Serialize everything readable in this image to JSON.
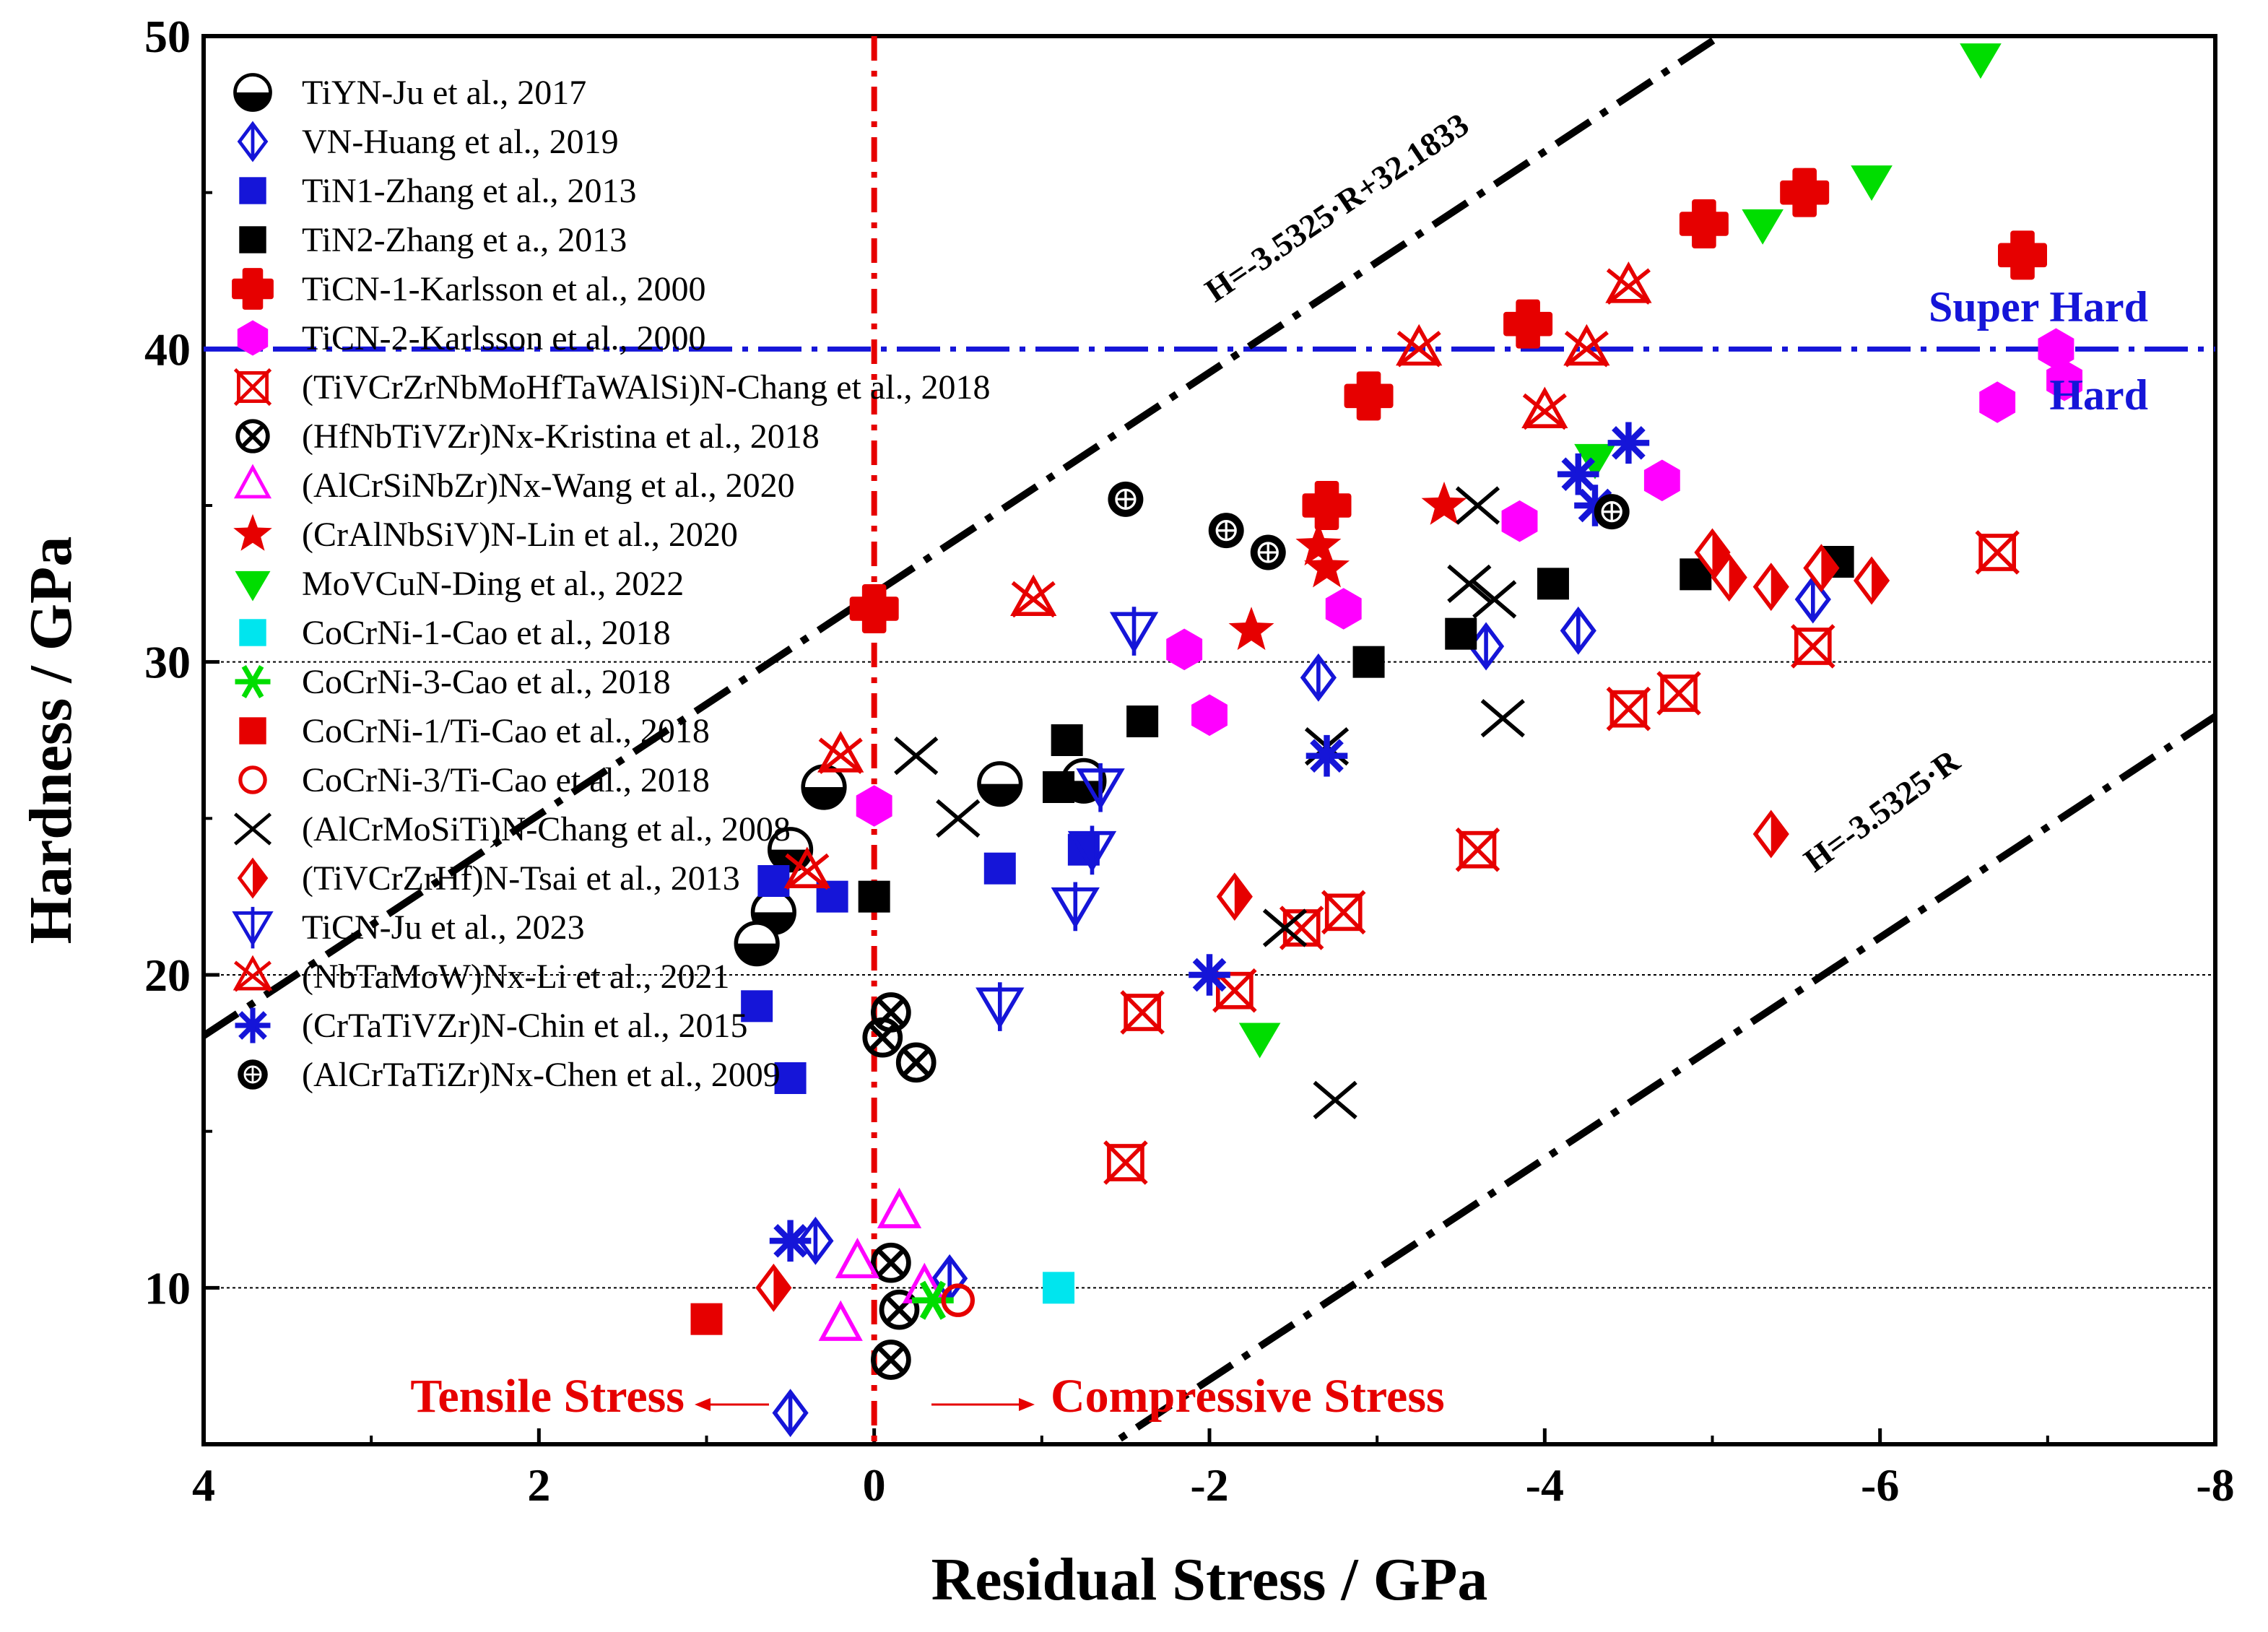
{
  "chart_data": {
    "type": "scatter",
    "xlabel": "Residual Stress / GPa",
    "ylabel": "Hardness / GPa",
    "xlim": [
      4,
      -8
    ],
    "ylim": [
      5,
      50
    ],
    "xticks": [
      4,
      2,
      0,
      -2,
      -4,
      -6,
      -8
    ],
    "xtick_labels": [
      "4",
      "2",
      "0",
      "-2",
      "-4",
      "-6",
      "-8"
    ],
    "yticks": [
      10,
      20,
      30,
      40,
      50
    ],
    "ytick_labels": [
      "10",
      "20",
      "30",
      "40",
      "50"
    ],
    "gridlines_y": [
      10,
      20,
      30
    ],
    "superhard_threshold": 40,
    "zero_stress_line": 0,
    "annotations": {
      "super_hard": "Super Hard",
      "hard": "Hard",
      "tensile": "Tensile Stress",
      "compressive": "Compressive Stress",
      "upper_line": "H=-3.5325·R+32.1833",
      "lower_line": "H=-3.5325·R"
    },
    "fit_lines": [
      {
        "name": "upper",
        "slope": -3.5325,
        "intercept": 32.1833,
        "x_range": [
          4,
          -5.2
        ]
      },
      {
        "name": "lower",
        "slope": -3.5325,
        "intercept": 0,
        "x_range": [
          -0.1,
          -8
        ]
      }
    ],
    "series": [
      {
        "name": "TiYN-Ju et al., 2017",
        "marker": "halfcircle",
        "color": "#000000",
        "points": [
          [
            0.3,
            26
          ],
          [
            0.5,
            24
          ],
          [
            0.6,
            22
          ],
          [
            0.7,
            21
          ],
          [
            -1.25,
            26.2
          ],
          [
            -0.75,
            26.1
          ]
        ]
      },
      {
        "name": "VN-Huang et al., 2019",
        "marker": "halfdiamond",
        "color": "#1515d8",
        "points": [
          [
            0.5,
            6
          ],
          [
            0.35,
            11.5
          ],
          [
            -0.45,
            10.3
          ],
          [
            -2.65,
            29.5
          ],
          [
            -3.65,
            30.5
          ],
          [
            -4.2,
            31
          ],
          [
            -5.6,
            32
          ]
        ]
      },
      {
        "name": "TiN1-Zhang et al., 2013",
        "marker": "square",
        "color": "#1515d8",
        "points": [
          [
            0.7,
            19
          ],
          [
            0.6,
            23
          ],
          [
            0.25,
            22.5
          ],
          [
            0.5,
            16.7
          ],
          [
            -0.75,
            23.4
          ],
          [
            -1.25,
            24
          ]
        ]
      },
      {
        "name": "TiN2-Zhang et a., 2013",
        "marker": "square",
        "color": "#000000",
        "points": [
          [
            0,
            22.5
          ],
          [
            -1.1,
            26
          ],
          [
            -1.15,
            27.5
          ],
          [
            -1.6,
            28.1
          ],
          [
            -2.95,
            30
          ],
          [
            -3.5,
            30.9
          ],
          [
            -4.05,
            32.5
          ],
          [
            -4.9,
            32.8
          ],
          [
            -5.75,
            33.2
          ]
        ]
      },
      {
        "name": "TiCN-1-Karlsson et al., 2000",
        "marker": "cross",
        "color": "#e60000",
        "points": [
          [
            0,
            31.7
          ],
          [
            -2.7,
            35
          ],
          [
            -2.95,
            38.5
          ],
          [
            -3.9,
            40.8
          ],
          [
            -4.95,
            44
          ],
          [
            -5.55,
            45
          ],
          [
            -6.85,
            43
          ]
        ]
      },
      {
        "name": "TiCN-2-Karlsson et al., 2000",
        "marker": "hexagon",
        "color": "#ff00ff",
        "points": [
          [
            0,
            25.4
          ],
          [
            -1.85,
            30.4
          ],
          [
            -2,
            28.3
          ],
          [
            -2.8,
            31.7
          ],
          [
            -3.85,
            34.5
          ],
          [
            -4.7,
            35.8
          ],
          [
            -6.7,
            38.3
          ],
          [
            -7.05,
            40
          ],
          [
            -7.1,
            39
          ]
        ]
      },
      {
        "name": "(TiVCrZrNbMoHfTaWAlSi)N-Chang et al., 2018",
        "marker": "xbox",
        "color": "#e60000",
        "points": [
          [
            -1.5,
            14
          ],
          [
            -1.6,
            18.8
          ],
          [
            -2.15,
            19.5
          ],
          [
            -2.55,
            21.5
          ],
          [
            -2.8,
            22
          ],
          [
            -3.6,
            24
          ],
          [
            -4.5,
            28.5
          ],
          [
            -4.8,
            29
          ],
          [
            -5.6,
            30.5
          ],
          [
            -6.7,
            33.5
          ]
        ]
      },
      {
        "name": "(HfNbTiVZr)Nx-Kristina et al., 2018",
        "marker": "xcircle",
        "color": "#000000",
        "points": [
          [
            -0.1,
            18.8
          ],
          [
            -0.05,
            18
          ],
          [
            -0.25,
            17.2
          ],
          [
            -0.1,
            10.8
          ],
          [
            -0.15,
            9.3
          ],
          [
            -0.1,
            7.7
          ]
        ]
      },
      {
        "name": "(AlCrSiNbZr)Nx-Wang et al., 2020",
        "marker": "triangle",
        "color": "#ff00ff",
        "points": [
          [
            -0.15,
            12.4
          ],
          [
            0.1,
            10.8
          ],
          [
            -0.3,
            10
          ],
          [
            0.2,
            8.8
          ]
        ]
      },
      {
        "name": "(CrAlNbSiV)N-Lin et al., 2020",
        "marker": "star",
        "color": "#e60000",
        "points": [
          [
            -2.25,
            31
          ],
          [
            -2.65,
            33.7
          ],
          [
            -2.7,
            33
          ],
          [
            -3.4,
            35
          ]
        ]
      },
      {
        "name": "MoVCuN-Ding et al., 2022",
        "marker": "triangledown",
        "color": "#00dd00",
        "points": [
          [
            -2.3,
            18
          ],
          [
            -4.3,
            36.5
          ],
          [
            -5.3,
            44
          ],
          [
            -5.95,
            45.4
          ],
          [
            -6.6,
            49.3
          ]
        ]
      },
      {
        "name": "CoCrNi-1-Cao et al., 2018",
        "marker": "square",
        "color": "#00e5ee",
        "points": [
          [
            -1.1,
            10
          ]
        ]
      },
      {
        "name": "CoCrNi-3-Cao et al., 2018",
        "marker": "asterisk6",
        "color": "#00dd00",
        "points": [
          [
            -0.35,
            9.6
          ]
        ]
      },
      {
        "name": "CoCrNi-1/Ti-Cao et al., 2018",
        "marker": "square",
        "color": "#e60000",
        "points": [
          [
            1,
            9
          ]
        ]
      },
      {
        "name": "CoCrNi-3/Ti-Cao et al., 2018",
        "marker": "circle",
        "color": "#e60000",
        "points": [
          [
            -0.5,
            9.6
          ]
        ]
      },
      {
        "name": "(AlCrMoSiTi)N-Chang et al., 2008",
        "marker": "xmark",
        "color": "#000000",
        "points": [
          [
            -0.25,
            27
          ],
          [
            -0.5,
            25
          ],
          [
            -2.45,
            21.5
          ],
          [
            -2.7,
            27.3
          ],
          [
            -2.75,
            16
          ],
          [
            -3.55,
            32.5
          ],
          [
            -3.6,
            35
          ],
          [
            -3.7,
            32
          ],
          [
            -3.75,
            28.2
          ]
        ]
      },
      {
        "name": "(TiVCrZrHf)N-Tsai et al., 2013",
        "marker": "halfdiamond2",
        "color": "#e60000",
        "points": [
          [
            0.6,
            10
          ],
          [
            -2.15,
            22.5
          ],
          [
            -5,
            33.5
          ],
          [
            -5.1,
            32.7
          ],
          [
            -5.35,
            32.4
          ],
          [
            -5.65,
            33
          ],
          [
            -5.95,
            32.6
          ],
          [
            -5.35,
            24.5
          ]
        ]
      },
      {
        "name": "TiCN-Ju et al., 2023",
        "marker": "tridown",
        "color": "#1515d8",
        "points": [
          [
            -0.75,
            19
          ],
          [
            -1.2,
            22.2
          ],
          [
            -1.3,
            24
          ],
          [
            -1.35,
            26
          ],
          [
            -1.55,
            31
          ]
        ]
      },
      {
        "name": "(NbTaMoW)Nx-Li et al., 2021",
        "marker": "trix",
        "color": "#e60000",
        "points": [
          [
            0.4,
            23.3
          ],
          [
            0.2,
            27
          ],
          [
            -0.95,
            32
          ],
          [
            -3.25,
            40
          ],
          [
            -4,
            38
          ],
          [
            -4.25,
            40
          ],
          [
            -4.5,
            42
          ]
        ]
      },
      {
        "name": "(CrTaTiVZr)N-Chin et al., 2015",
        "marker": "asterisk8",
        "color": "#1515d8",
        "points": [
          [
            0.5,
            11.5
          ],
          [
            -2,
            20
          ],
          [
            -2.7,
            27
          ],
          [
            -4.2,
            36
          ],
          [
            -4.3,
            35
          ],
          [
            -4.5,
            37
          ]
        ]
      },
      {
        "name": "(AlCrTaTiZr)Nx-Chen et al., 2009",
        "marker": "pluscircle",
        "color": "#000000",
        "points": [
          [
            -1.5,
            35.2
          ],
          [
            -2.1,
            34.2
          ],
          [
            -2.35,
            33.5
          ],
          [
            -4.4,
            34.8
          ]
        ]
      }
    ]
  }
}
